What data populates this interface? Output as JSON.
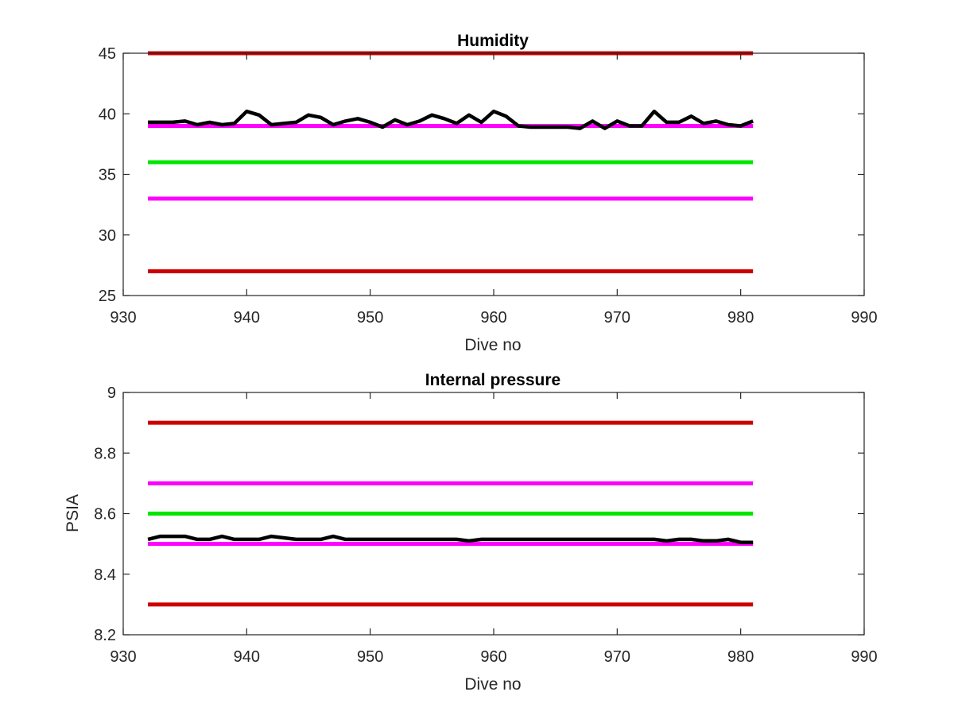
{
  "figure": {
    "background": "#ffffff"
  },
  "chart_data": [
    {
      "type": "line",
      "title": "Humidity",
      "xlabel": "Dive no",
      "ylabel": "",
      "xlim": [
        930,
        990
      ],
      "ylim": [
        25,
        45
      ],
      "xticks": [
        930,
        940,
        950,
        960,
        970,
        980,
        990
      ],
      "yticks": [
        25,
        30,
        35,
        40,
        45
      ],
      "grid": false,
      "series": [
        {
          "color": "#000000",
          "x": [
            932,
            933,
            934,
            935,
            936,
            937,
            938,
            939,
            940,
            941,
            942,
            943,
            944,
            945,
            946,
            947,
            948,
            949,
            950,
            951,
            952,
            953,
            954,
            955,
            956,
            957,
            958,
            959,
            960,
            961,
            962,
            963,
            964,
            965,
            966,
            967,
            968,
            969,
            970,
            971,
            972,
            973,
            974,
            975,
            976,
            977,
            978,
            979,
            980,
            981
          ],
          "values": [
            39.3,
            39.3,
            39.3,
            39.4,
            39.1,
            39.3,
            39.1,
            39.2,
            40.2,
            39.9,
            39.1,
            39.2,
            39.3,
            39.9,
            39.7,
            39.1,
            39.4,
            39.6,
            39.3,
            38.9,
            39.5,
            39.1,
            39.4,
            39.9,
            39.6,
            39.2,
            39.9,
            39.3,
            40.2,
            39.8,
            39.0,
            38.9,
            38.9,
            38.9,
            38.9,
            38.8,
            39.4,
            38.8,
            39.4,
            39.0,
            39.0,
            40.2,
            39.3,
            39.3,
            39.8,
            39.2,
            39.4,
            39.1,
            39.0,
            39.4
          ]
        }
      ],
      "reference_lines": [
        {
          "value": 45,
          "color": "#cc0000"
        },
        {
          "value": 39,
          "color": "#ff00ff"
        },
        {
          "value": 36,
          "color": "#00e600"
        },
        {
          "value": 33,
          "color": "#ff00ff"
        },
        {
          "value": 27,
          "color": "#cc0000"
        }
      ],
      "reference_x_range": [
        932,
        981
      ]
    },
    {
      "type": "line",
      "title": "Internal pressure",
      "xlabel": "Dive no",
      "ylabel": "PSIA",
      "xlim": [
        930,
        990
      ],
      "ylim": [
        8.2,
        9
      ],
      "xticks": [
        930,
        940,
        950,
        960,
        970,
        980,
        990
      ],
      "yticks": [
        8.2,
        8.4,
        8.6,
        8.8,
        9
      ],
      "grid": false,
      "series": [
        {
          "color": "#000000",
          "x": [
            932,
            933,
            934,
            935,
            936,
            937,
            938,
            939,
            940,
            941,
            942,
            943,
            944,
            945,
            946,
            947,
            948,
            949,
            950,
            951,
            952,
            953,
            954,
            955,
            956,
            957,
            958,
            959,
            960,
            961,
            962,
            963,
            964,
            965,
            966,
            967,
            968,
            969,
            970,
            971,
            972,
            973,
            974,
            975,
            976,
            977,
            978,
            979,
            980,
            981
          ],
          "values": [
            8.515,
            8.525,
            8.525,
            8.525,
            8.515,
            8.515,
            8.525,
            8.515,
            8.515,
            8.515,
            8.525,
            8.52,
            8.515,
            8.515,
            8.515,
            8.525,
            8.515,
            8.515,
            8.515,
            8.515,
            8.515,
            8.515,
            8.515,
            8.515,
            8.515,
            8.515,
            8.51,
            8.515,
            8.515,
            8.515,
            8.515,
            8.515,
            8.515,
            8.515,
            8.515,
            8.515,
            8.515,
            8.515,
            8.515,
            8.515,
            8.515,
            8.515,
            8.51,
            8.515,
            8.515,
            8.51,
            8.51,
            8.515,
            8.505,
            8.505
          ]
        }
      ],
      "reference_lines": [
        {
          "value": 8.9,
          "color": "#cc0000"
        },
        {
          "value": 8.7,
          "color": "#ff00ff"
        },
        {
          "value": 8.6,
          "color": "#00e600"
        },
        {
          "value": 8.5,
          "color": "#ff00ff"
        },
        {
          "value": 8.3,
          "color": "#cc0000"
        }
      ],
      "reference_x_range": [
        932,
        981
      ]
    }
  ]
}
